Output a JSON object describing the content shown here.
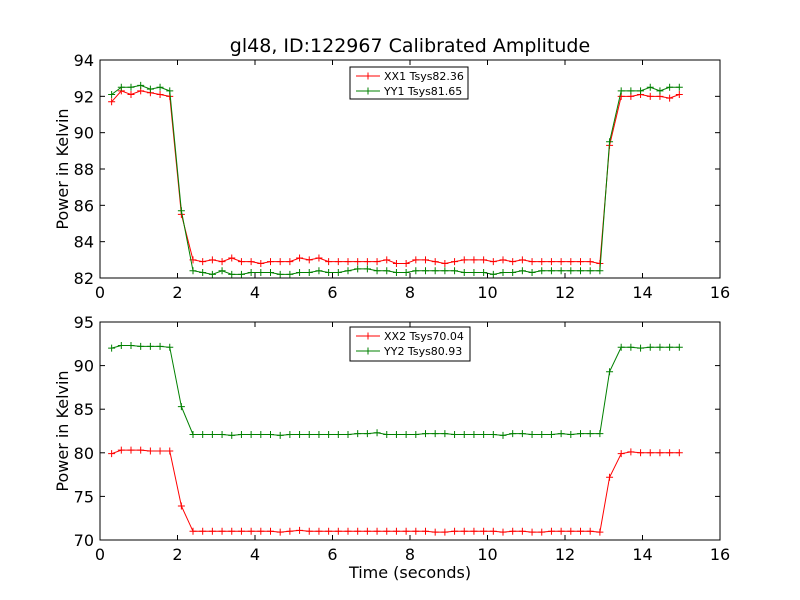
{
  "colors": {
    "xx": "#ff0000",
    "yy": "#008000"
  },
  "chart_data": [
    {
      "type": "line",
      "title": "gl48, ID:122967 Calibrated Amplitude",
      "xlabel": "",
      "ylabel": "Power in Kelvin",
      "xlim": [
        0,
        16
      ],
      "ylim": [
        82,
        94
      ],
      "xticks": [
        0,
        2,
        4,
        6,
        8,
        10,
        12,
        14,
        16
      ],
      "yticks": [
        82,
        84,
        86,
        88,
        90,
        92,
        94
      ],
      "legend_position": "top-center",
      "x": [
        0.3,
        0.55,
        0.8,
        1.05,
        1.3,
        1.55,
        1.8,
        2.1,
        2.4,
        2.65,
        2.9,
        3.15,
        3.4,
        3.65,
        3.9,
        4.15,
        4.4,
        4.65,
        4.9,
        5.15,
        5.4,
        5.65,
        5.9,
        6.15,
        6.4,
        6.65,
        6.9,
        7.15,
        7.4,
        7.65,
        7.9,
        8.15,
        8.4,
        8.65,
        8.9,
        9.15,
        9.4,
        9.65,
        9.9,
        10.15,
        10.4,
        10.65,
        10.9,
        11.15,
        11.4,
        11.65,
        11.9,
        12.15,
        12.4,
        12.65,
        12.9,
        13.15,
        13.45,
        13.7,
        13.95,
        14.2,
        14.45,
        14.7,
        14.95
      ],
      "series": [
        {
          "name": "XX1 Tsys82.36",
          "color": "#ff0000",
          "values": [
            91.7,
            92.3,
            92.1,
            92.3,
            92.2,
            92.1,
            92.0,
            85.5,
            83.0,
            82.9,
            83.0,
            82.9,
            83.1,
            82.9,
            82.9,
            82.8,
            82.9,
            82.9,
            82.9,
            83.1,
            83.0,
            83.1,
            82.9,
            82.9,
            82.9,
            82.9,
            82.9,
            82.9,
            83.0,
            82.8,
            82.8,
            83.0,
            83.0,
            82.9,
            82.8,
            82.9,
            83.0,
            83.0,
            83.0,
            82.9,
            83.0,
            82.9,
            83.0,
            82.9,
            82.9,
            82.9,
            82.9,
            82.9,
            82.9,
            82.9,
            82.8,
            89.3,
            92.0,
            92.0,
            92.1,
            92.0,
            92.0,
            91.9,
            92.1
          ]
        },
        {
          "name": "YY1 Tsys81.65",
          "color": "#008000",
          "values": [
            92.1,
            92.5,
            92.5,
            92.6,
            92.4,
            92.5,
            92.3,
            85.7,
            82.4,
            82.3,
            82.2,
            82.4,
            82.2,
            82.2,
            82.3,
            82.3,
            82.3,
            82.2,
            82.2,
            82.3,
            82.3,
            82.4,
            82.3,
            82.3,
            82.4,
            82.5,
            82.5,
            82.4,
            82.4,
            82.3,
            82.3,
            82.4,
            82.4,
            82.4,
            82.4,
            82.4,
            82.3,
            82.3,
            82.3,
            82.2,
            82.3,
            82.3,
            82.4,
            82.3,
            82.4,
            82.4,
            82.4,
            82.4,
            82.4,
            82.4,
            82.4,
            89.5,
            92.3,
            92.3,
            92.3,
            92.5,
            92.3,
            92.5,
            92.5
          ]
        }
      ]
    },
    {
      "type": "line",
      "title": "",
      "xlabel": "Time (seconds)",
      "ylabel": "Power in Kelvin",
      "xlim": [
        0,
        16
      ],
      "ylim": [
        70,
        95
      ],
      "xticks": [
        0,
        2,
        4,
        6,
        8,
        10,
        12,
        14,
        16
      ],
      "yticks": [
        70,
        75,
        80,
        85,
        90,
        95
      ],
      "legend_position": "top-center",
      "x": [
        0.3,
        0.55,
        0.8,
        1.05,
        1.3,
        1.55,
        1.8,
        2.1,
        2.4,
        2.65,
        2.9,
        3.15,
        3.4,
        3.65,
        3.9,
        4.15,
        4.4,
        4.65,
        4.9,
        5.15,
        5.4,
        5.65,
        5.9,
        6.15,
        6.4,
        6.65,
        6.9,
        7.15,
        7.4,
        7.65,
        7.9,
        8.15,
        8.4,
        8.65,
        8.9,
        9.15,
        9.4,
        9.65,
        9.9,
        10.15,
        10.4,
        10.65,
        10.9,
        11.15,
        11.4,
        11.65,
        11.9,
        12.15,
        12.4,
        12.65,
        12.9,
        13.15,
        13.45,
        13.7,
        13.95,
        14.2,
        14.45,
        14.7,
        14.95
      ],
      "series": [
        {
          "name": "XX2 Tsys70.04",
          "color": "#ff0000",
          "values": [
            79.9,
            80.3,
            80.3,
            80.3,
            80.2,
            80.2,
            80.2,
            73.9,
            71.0,
            71.0,
            71.0,
            71.0,
            71.0,
            71.0,
            71.0,
            71.0,
            71.0,
            70.9,
            71.0,
            71.1,
            71.0,
            71.0,
            71.0,
            71.0,
            71.0,
            71.0,
            71.0,
            71.0,
            71.0,
            71.0,
            71.0,
            71.0,
            71.0,
            70.9,
            70.9,
            71.0,
            71.0,
            71.0,
            71.0,
            71.0,
            70.9,
            71.0,
            71.0,
            70.9,
            70.9,
            71.0,
            71.0,
            71.0,
            71.0,
            71.0,
            70.9,
            77.2,
            79.9,
            80.1,
            80.0,
            80.0,
            80.0,
            80.0,
            80.0
          ]
        },
        {
          "name": "YY2 Tsys80.93",
          "color": "#008000",
          "values": [
            92.0,
            92.3,
            92.3,
            92.2,
            92.2,
            92.2,
            92.1,
            85.3,
            82.1,
            82.1,
            82.1,
            82.1,
            82.0,
            82.1,
            82.1,
            82.1,
            82.1,
            82.0,
            82.1,
            82.1,
            82.1,
            82.1,
            82.1,
            82.1,
            82.1,
            82.2,
            82.2,
            82.3,
            82.1,
            82.1,
            82.1,
            82.1,
            82.2,
            82.2,
            82.2,
            82.1,
            82.1,
            82.1,
            82.1,
            82.1,
            82.0,
            82.2,
            82.2,
            82.1,
            82.1,
            82.1,
            82.2,
            82.1,
            82.2,
            82.2,
            82.2,
            89.3,
            92.1,
            92.1,
            92.0,
            92.1,
            92.1,
            92.1,
            92.1
          ]
        }
      ]
    }
  ]
}
